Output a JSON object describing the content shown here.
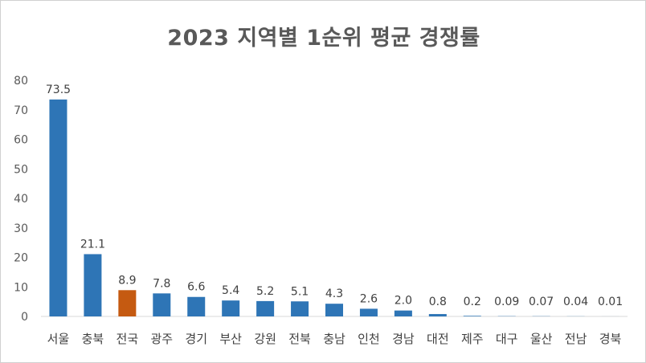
{
  "chart_data": {
    "type": "bar",
    "title": "2023 지역별 1순위 평균 경쟁률",
    "xlabel": "",
    "ylabel": "",
    "ylim": [
      0,
      80
    ],
    "yticks": [
      0,
      10,
      20,
      30,
      40,
      50,
      60,
      70,
      80
    ],
    "grid": false,
    "legend": "none",
    "categories": [
      "서울",
      "충북",
      "전국",
      "광주",
      "경기",
      "부산",
      "강원",
      "전북",
      "충남",
      "인천",
      "경남",
      "대전",
      "제주",
      "대구",
      "울산",
      "전남",
      "경북"
    ],
    "values": [
      73.5,
      21.1,
      8.9,
      7.8,
      6.6,
      5.4,
      5.2,
      5.1,
      4.3,
      2.6,
      2.0,
      0.8,
      0.2,
      0.09,
      0.07,
      0.04,
      0.01
    ],
    "data_labels": [
      "73.5",
      "21.1",
      "8.9",
      "7.8",
      "6.6",
      "5.4",
      "5.2",
      "5.1",
      "4.3",
      "2.6",
      "2.0",
      "0.8",
      "0.2",
      "0.09",
      "0.07",
      "0.04",
      "0.01"
    ],
    "colors": {
      "default_bar": "#2e75b6",
      "highlight_bar": "#c55a11",
      "axis": "#d9d9d9"
    },
    "highlight_category": "전국"
  }
}
